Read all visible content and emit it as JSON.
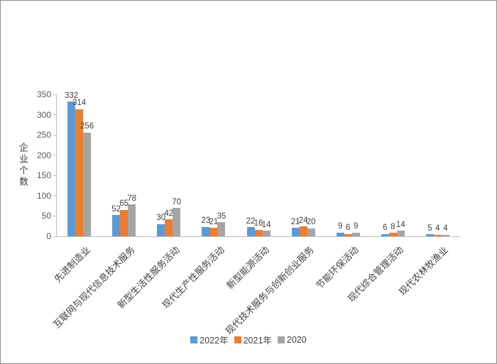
{
  "chart_data": {
    "type": "bar",
    "title": "",
    "ylabel": "企业个数",
    "xlabel": "",
    "ylim": [
      0,
      350
    ],
    "yticks": [
      0,
      50,
      100,
      150,
      200,
      250,
      300,
      350
    ],
    "grid": false,
    "legend_position": "bottom",
    "categories": [
      "先进制造业",
      "互联网与现代信息技术服务",
      "新型生活性服务活动",
      "现代生产性服务活动",
      "新型能源活动",
      "现代技术服务与创新创业服务",
      "节能环保活动",
      "现代综合管理活动",
      "现代农林牧渔业"
    ],
    "series": [
      {
        "name": "2022年",
        "color": "#5B9BD5",
        "values": [
          332,
          52,
          30,
          23,
          22,
          21,
          9,
          6,
          5
        ]
      },
      {
        "name": "2021年",
        "color": "#ED7D31",
        "values": [
          314,
          65,
          42,
          21,
          16,
          24,
          6,
          8,
          4
        ]
      },
      {
        "name": "2020",
        "color": "#A5A5A5",
        "values": [
          256,
          78,
          70,
          35,
          14,
          20,
          9,
          14,
          4
        ]
      }
    ],
    "axis_color": "#bfbfbf",
    "label_color": "#3f3f3f"
  }
}
